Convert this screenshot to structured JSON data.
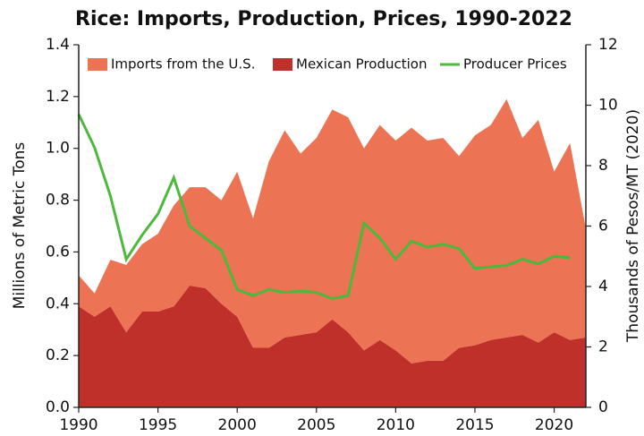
{
  "chart_data": {
    "type": "area",
    "stacked": true,
    "title": "Rice: Imports, Production, Prices, 1990-2022",
    "ylabel": "Millions of Metric Tons",
    "y2label": "Thousands of Pesos/MT (2020)",
    "x": [
      1990,
      1991,
      1992,
      1993,
      1994,
      1995,
      1996,
      1997,
      1998,
      1999,
      2000,
      2001,
      2002,
      2003,
      2004,
      2005,
      2006,
      2007,
      2008,
      2009,
      2010,
      2011,
      2012,
      2013,
      2014,
      2015,
      2016,
      2017,
      2018,
      2019,
      2020,
      2021,
      2022
    ],
    "series": [
      {
        "name": "Imports from the U.S.",
        "type": "area",
        "color": "#ec7454",
        "values": [
          0.12,
          0.09,
          0.18,
          0.26,
          0.26,
          0.3,
          0.39,
          0.38,
          0.39,
          0.4,
          0.56,
          0.5,
          0.72,
          0.8,
          0.7,
          0.75,
          0.81,
          0.83,
          0.78,
          0.83,
          0.81,
          0.91,
          0.85,
          0.86,
          0.74,
          0.81,
          0.83,
          0.92,
          0.76,
          0.86,
          0.62,
          0.76,
          0.42
        ]
      },
      {
        "name": "Mexican Production",
        "type": "area",
        "color": "#c0302a",
        "values": [
          0.39,
          0.35,
          0.39,
          0.29,
          0.37,
          0.37,
          0.39,
          0.47,
          0.46,
          0.4,
          0.35,
          0.23,
          0.23,
          0.27,
          0.28,
          0.29,
          0.34,
          0.29,
          0.22,
          0.26,
          0.22,
          0.17,
          0.18,
          0.18,
          0.23,
          0.24,
          0.26,
          0.27,
          0.28,
          0.25,
          0.29,
          0.26,
          0.27
        ]
      },
      {
        "name": "Producer Prices",
        "type": "line",
        "axis": "y2",
        "color": "#4cb83c",
        "values": [
          9.7,
          8.6,
          7.0,
          4.9,
          5.7,
          6.4,
          7.6,
          6.0,
          5.6,
          5.2,
          3.9,
          3.7,
          3.9,
          3.8,
          3.85,
          3.8,
          3.6,
          3.7,
          6.1,
          5.6,
          4.9,
          5.5,
          5.3,
          5.4,
          5.25,
          4.6,
          4.65,
          4.7,
          4.9,
          4.75,
          5.0,
          4.95,
          null
        ]
      }
    ],
    "xlim": [
      1990,
      2022
    ],
    "xticks": [
      1990,
      1995,
      2000,
      2005,
      2010,
      2015,
      2020
    ],
    "ylim": [
      0,
      1.4
    ],
    "yticks": [
      {
        "value": 0,
        "label": "0.0"
      },
      {
        "value": 0.2,
        "label": "0.2"
      },
      {
        "value": 0.4,
        "label": "0.4"
      },
      {
        "value": 0.6,
        "label": "0.6"
      },
      {
        "value": 0.8,
        "label": "0.8"
      },
      {
        "value": 1.0,
        "label": "1.0"
      },
      {
        "value": 1.2,
        "label": "1.2"
      },
      {
        "value": 1.4,
        "label": "1.4"
      }
    ],
    "y2lim": [
      0,
      12
    ],
    "y2ticks": [
      0,
      2,
      4,
      6,
      8,
      10,
      12
    ],
    "legend": "top"
  }
}
